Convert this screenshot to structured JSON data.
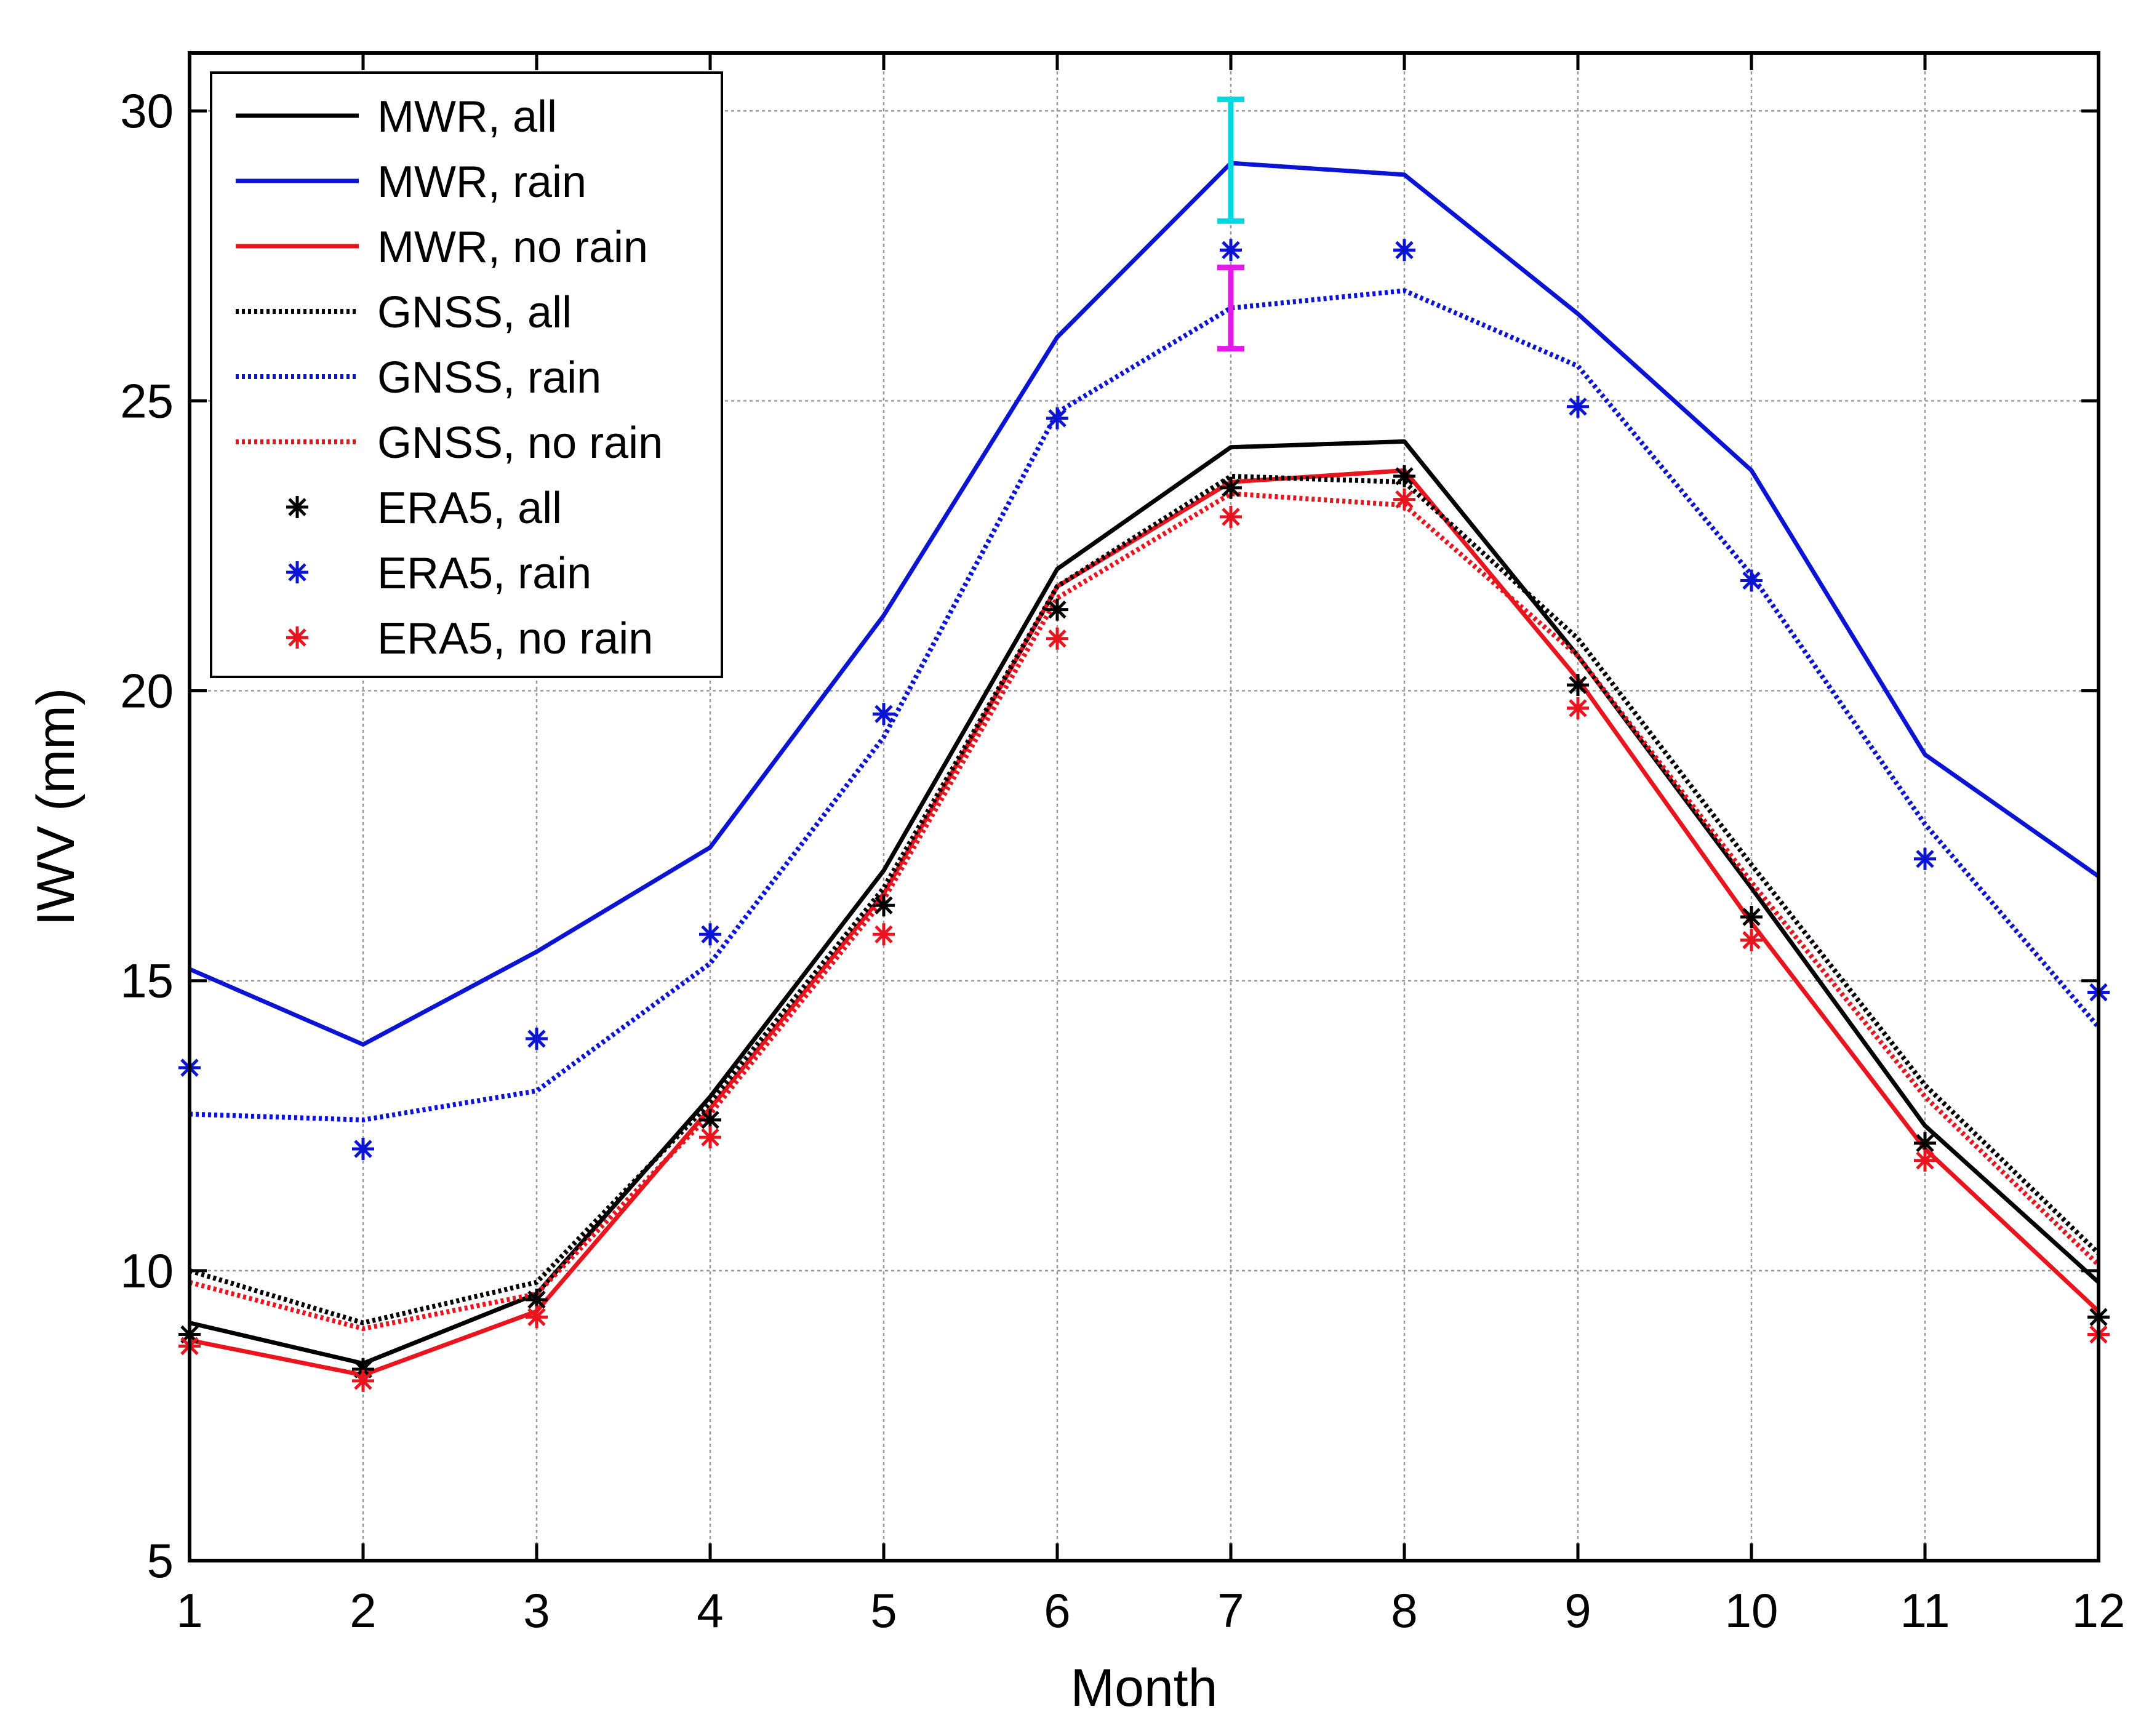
{
  "chart_data": {
    "type": "line",
    "title": "",
    "xlabel": "Month",
    "ylabel": "IWV (mm)",
    "xlim": [
      1,
      12
    ],
    "ylim": [
      5,
      31
    ],
    "grid": true,
    "legend_position": "top-left",
    "x": [
      1,
      2,
      3,
      4,
      5,
      6,
      7,
      8,
      9,
      10,
      11,
      12
    ],
    "x_ticks": [
      "1",
      "2",
      "3",
      "4",
      "5",
      "6",
      "7",
      "8",
      "9",
      "10",
      "11",
      "12"
    ],
    "y_ticks": [
      5,
      10,
      15,
      20,
      25,
      30
    ],
    "y_tick_labels": [
      "5",
      "10",
      "15",
      "20",
      "25",
      "30"
    ],
    "series": [
      {
        "name": "MWR, all",
        "kind": "line",
        "style": "solid",
        "color": "#000000",
        "values": [
          9.1,
          8.4,
          9.6,
          13.0,
          16.9,
          22.1,
          24.2,
          24.3,
          20.6,
          16.6,
          12.5,
          9.8
        ]
      },
      {
        "name": "MWR, rain",
        "kind": "line",
        "style": "solid",
        "color": "#0a14d2",
        "values": [
          15.2,
          13.9,
          15.5,
          17.3,
          21.3,
          26.1,
          29.1,
          28.9,
          26.5,
          23.8,
          18.9,
          16.8
        ]
      },
      {
        "name": "MWR, no rain",
        "kind": "line",
        "style": "solid",
        "color": "#e8141e",
        "values": [
          8.8,
          8.2,
          9.3,
          12.8,
          16.5,
          21.8,
          23.6,
          23.8,
          20.2,
          16.0,
          12.1,
          9.3
        ]
      },
      {
        "name": "GNSS, all",
        "kind": "line",
        "style": "dotted",
        "color": "#000000",
        "values": [
          10.0,
          9.1,
          9.8,
          12.9,
          16.6,
          21.8,
          23.7,
          23.6,
          20.9,
          17.0,
          13.2,
          10.3
        ]
      },
      {
        "name": "GNSS, rain",
        "kind": "line",
        "style": "dotted",
        "color": "#0a14d2",
        "values": [
          12.7,
          12.6,
          13.1,
          15.3,
          19.2,
          24.8,
          26.6,
          26.9,
          25.6,
          22.0,
          17.7,
          14.2
        ]
      },
      {
        "name": "GNSS, no rain",
        "kind": "line",
        "style": "dotted",
        "color": "#e8141e",
        "values": [
          9.8,
          9.0,
          9.6,
          12.7,
          16.4,
          21.6,
          23.4,
          23.2,
          20.6,
          16.7,
          13.0,
          10.1
        ]
      },
      {
        "name": "ERA5, all",
        "kind": "marker",
        "style": "asterisk",
        "color": "#000000",
        "values": [
          8.9,
          8.3,
          9.5,
          12.6,
          16.3,
          21.4,
          23.5,
          23.7,
          20.1,
          16.1,
          12.2,
          9.2
        ]
      },
      {
        "name": "ERA5, rain",
        "kind": "marker",
        "style": "asterisk",
        "color": "#0a14d2",
        "values": [
          13.5,
          12.1,
          14.0,
          15.8,
          19.6,
          24.7,
          27.6,
          27.6,
          24.9,
          21.9,
          17.1,
          14.8
        ]
      },
      {
        "name": "ERA5, no rain",
        "kind": "marker",
        "style": "asterisk",
        "color": "#e8141e",
        "values": [
          8.7,
          8.1,
          9.2,
          12.3,
          15.8,
          20.9,
          23.0,
          23.3,
          19.7,
          15.7,
          11.9,
          8.9
        ]
      }
    ],
    "error_bars": [
      {
        "x": 7,
        "low": 28.1,
        "high": 30.2,
        "color": "#00d8e0"
      },
      {
        "x": 7,
        "low": 25.9,
        "high": 27.3,
        "color": "#e21ae6"
      }
    ]
  }
}
